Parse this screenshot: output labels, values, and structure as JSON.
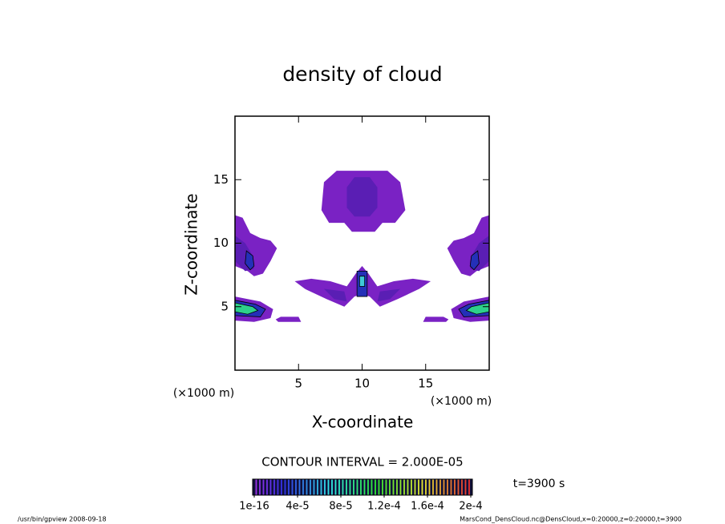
{
  "chart_data": {
    "type": "contour",
    "title": "density of cloud",
    "x_label": "X-coordinate",
    "y_label": "Z-coordinate",
    "x_unit": "(×1000 m)",
    "y_unit": "(×1000 m)",
    "xlim": [
      0,
      20
    ],
    "ylim": [
      0,
      20
    ],
    "xticks": [
      5,
      10,
      15
    ],
    "yticks": [
      5,
      10,
      15
    ],
    "levels": [
      2e-05,
      4e-05,
      6e-05,
      8e-05,
      0.0001
    ],
    "colors": [
      "#7a22c4",
      "#5a1eb4",
      "#2430b8",
      "#3fc8d8",
      "#2ed08a"
    ],
    "regions": [
      {
        "level": 2e-05,
        "x": [
          7,
          8,
          12,
          13,
          13.4,
          12.6,
          11.6,
          11,
          9.2,
          8.6,
          7.4,
          6.8
        ],
        "y": [
          14.8,
          15.7,
          15.7,
          14.8,
          12.6,
          11.6,
          11.6,
          10.9,
          10.9,
          11.6,
          11.6,
          12.6
        ]
      },
      {
        "level": 4e-05,
        "x": [
          8.8,
          9.4,
          10.6,
          11.2,
          11.2,
          10.6,
          9.4,
          8.8
        ],
        "y": [
          14.4,
          15.2,
          15.2,
          14.4,
          12.8,
          12.1,
          12.1,
          12.8
        ]
      },
      {
        "level": 2e-05,
        "x": [
          0,
          0.6,
          1.2,
          2,
          2.8,
          3.3,
          2.8,
          2.2,
          1.5,
          1,
          0
        ],
        "y": [
          12.2,
          12,
          10.8,
          10.4,
          10.2,
          9.6,
          8.6,
          7.6,
          7.4,
          7.8,
          8.2
        ]
      },
      {
        "level": 4e-05,
        "x": [
          0,
          0.8,
          1.4,
          1.5,
          0.8,
          0
        ],
        "y": [
          10.6,
          10,
          9,
          8,
          7.8,
          8.6
        ]
      },
      {
        "level": 6e-05,
        "x": [
          0.9,
          1.4,
          1.5,
          1.2,
          0.8
        ],
        "y": [
          9.4,
          9,
          8.2,
          7.9,
          8.4
        ]
      },
      {
        "level": 2e-05,
        "x": [
          20,
          19.4,
          18.8,
          18,
          17.2,
          16.7,
          17.2,
          17.8,
          18.5,
          19,
          20
        ],
        "y": [
          12.2,
          12,
          10.8,
          10.4,
          10.2,
          9.6,
          8.6,
          7.6,
          7.4,
          7.8,
          8.2
        ]
      },
      {
        "level": 4e-05,
        "x": [
          20,
          19.2,
          18.6,
          18.5,
          19.2,
          20
        ],
        "y": [
          10.6,
          10,
          9,
          8,
          7.8,
          8.6
        ]
      },
      {
        "level": 6e-05,
        "x": [
          19.1,
          18.6,
          18.5,
          18.8,
          19.2
        ],
        "y": [
          9.4,
          9,
          8.2,
          7.9,
          8.4
        ]
      },
      {
        "level": 2e-05,
        "x": [
          0,
          1,
          2,
          3,
          2.8,
          1.5,
          0
        ],
        "y": [
          5.8,
          5.6,
          5.4,
          4.8,
          4.1,
          3.8,
          3.9
        ]
      },
      {
        "level": 6e-05,
        "x": [
          0,
          1.6,
          2.4,
          2,
          0
        ],
        "y": [
          5.5,
          5.2,
          4.8,
          4.2,
          4.3
        ]
      },
      {
        "level": 0.0001,
        "x": [
          0,
          1.4,
          1.8,
          1,
          0
        ],
        "y": [
          5.3,
          5,
          4.7,
          4.4,
          4.6
        ]
      },
      {
        "level": 2e-05,
        "x": [
          20,
          19,
          18,
          17,
          17.2,
          18.5,
          20
        ],
        "y": [
          5.8,
          5.6,
          5.4,
          4.8,
          4.1,
          3.8,
          3.9
        ]
      },
      {
        "level": 6e-05,
        "x": [
          20,
          18.4,
          17.6,
          18,
          20
        ],
        "y": [
          5.5,
          5.2,
          4.8,
          4.2,
          4.3
        ]
      },
      {
        "level": 0.0001,
        "x": [
          20,
          18.6,
          18.2,
          19,
          20
        ],
        "y": [
          5.3,
          5,
          4.7,
          4.4,
          4.6
        ]
      },
      {
        "level": 2e-05,
        "x": [
          3.2,
          3.6,
          5,
          5.2,
          3.4
        ],
        "y": [
          4,
          4.2,
          4.2,
          3.8,
          3.8
        ]
      },
      {
        "level": 2e-05,
        "x": [
          16.8,
          16.4,
          15,
          14.8,
          16.6
        ],
        "y": [
          4,
          4.2,
          4.2,
          3.8,
          3.8
        ]
      },
      {
        "level": 2e-05,
        "x": [
          4.7,
          6,
          7.5,
          8.8,
          9.5,
          10,
          10.5,
          11.2,
          12.5,
          14,
          15.4,
          14.5,
          12.8,
          11.4,
          10.6,
          10,
          9.4,
          8.6,
          7.2,
          5.5
        ],
        "y": [
          7,
          7.2,
          7,
          6.6,
          7.6,
          8.2,
          7.6,
          6.6,
          7,
          7.2,
          7,
          6.4,
          5.6,
          5,
          5.8,
          6,
          5.8,
          5,
          5.6,
          6.4
        ]
      },
      {
        "level": 4e-05,
        "x": [
          7,
          8.6,
          8.8,
          7.8
        ],
        "y": [
          6.4,
          6.2,
          5.4,
          5.6
        ]
      },
      {
        "level": 4e-05,
        "x": [
          13,
          11.4,
          11.2,
          12.2
        ],
        "y": [
          6.4,
          6.2,
          5.4,
          5.6
        ]
      },
      {
        "level": 6e-05,
        "x": [
          9.6,
          10.4,
          10.4,
          9.6
        ],
        "y": [
          7.8,
          7.8,
          5.8,
          5.8
        ]
      },
      {
        "level": 8e-05,
        "x": [
          9.8,
          10.2,
          10.2,
          9.8
        ],
        "y": [
          7.4,
          7.4,
          6.6,
          6.6
        ]
      }
    ],
    "contour_interval": "CONTOUR INTERVAL = 2.000E-05",
    "time_label": "t=3900 s",
    "clim": [
      1e-16,
      0.0002
    ],
    "cticks": [
      {
        "value": 1e-16,
        "label": "1e-16"
      },
      {
        "value": 4e-05,
        "label": "4e-5"
      },
      {
        "value": 8e-05,
        "label": "8e-5"
      },
      {
        "value": 0.00012,
        "label": "1.2e-4"
      },
      {
        "value": 0.00016,
        "label": "1.6e-4"
      },
      {
        "value": 0.0002,
        "label": "2e-4"
      }
    ],
    "footer_left": "/usr/bin/gpview  2008-09-18",
    "footer_right": "MarsCond_DensCloud.nc@DensCloud,x=0:20000,z=0:20000,t=3900"
  }
}
